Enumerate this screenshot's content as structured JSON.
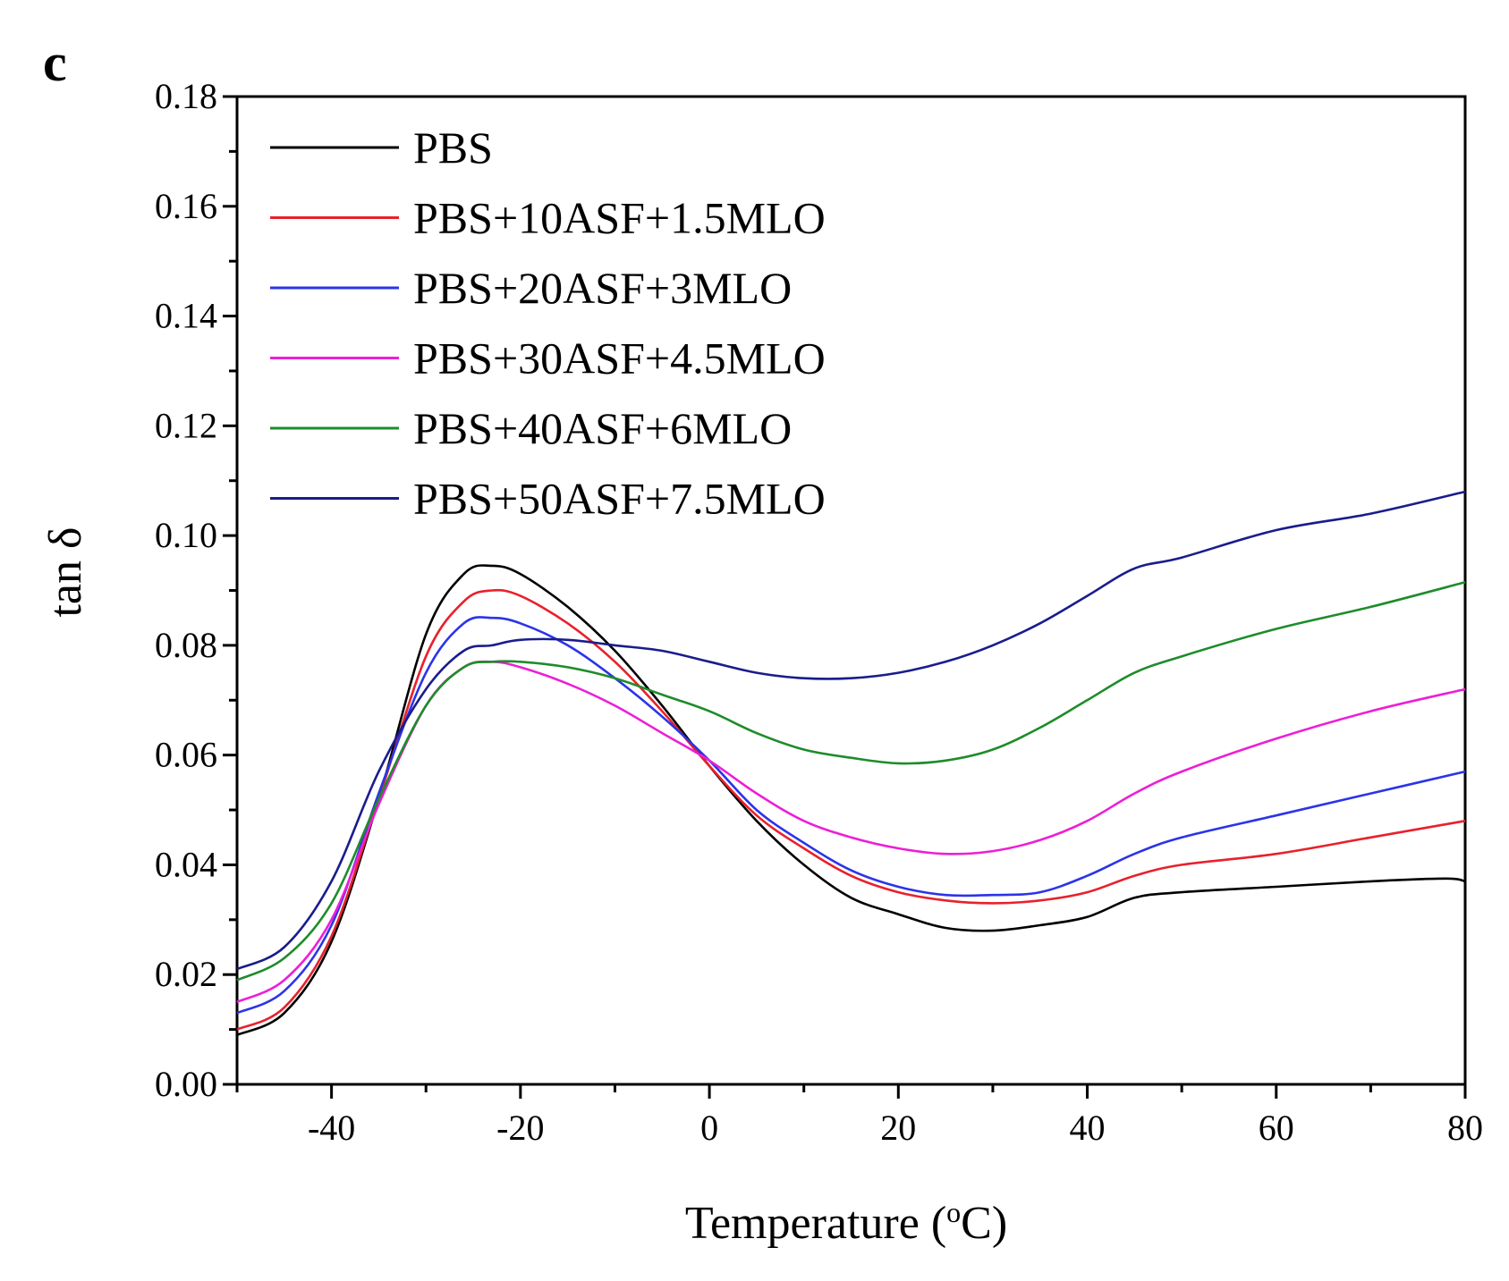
{
  "chart_data": {
    "type": "line",
    "panel_label": "c",
    "xlabel": "Temperature (",
    "xlabel_sup": "o",
    "xlabel_tail": "C)",
    "ylabel": "tan δ",
    "xlim": [
      -50,
      80
    ],
    "ylim": [
      0,
      0.18
    ],
    "x_ticks": [
      -40,
      -20,
      0,
      20,
      40,
      60,
      80
    ],
    "x_tick_labels": [
      "-40",
      "-20",
      "0",
      "20",
      "40",
      "60",
      "80"
    ],
    "y_ticks": [
      0,
      0.02,
      0.04,
      0.06,
      0.08,
      0.1,
      0.12,
      0.14,
      0.16,
      0.18
    ],
    "y_tick_labels": [
      "0.00",
      "0.02",
      "0.04",
      "0.06",
      "0.08",
      "0.10",
      "0.12",
      "0.14",
      "0.16",
      "0.18"
    ],
    "legend_position": "top-left",
    "series": [
      {
        "name": "PBS",
        "color": "#000000",
        "x": [
          -50,
          -45,
          -40,
          -35,
          -30,
          -26,
          -23,
          -20,
          -15,
          -10,
          -5,
          0,
          5,
          10,
          15,
          20,
          25,
          30,
          35,
          40,
          45,
          50,
          60,
          70,
          78,
          80
        ],
        "y": [
          0.009,
          0.013,
          0.026,
          0.052,
          0.082,
          0.093,
          0.0945,
          0.093,
          0.087,
          0.079,
          0.069,
          0.058,
          0.048,
          0.04,
          0.034,
          0.031,
          0.0285,
          0.028,
          0.029,
          0.0305,
          0.034,
          0.035,
          0.036,
          0.037,
          0.0375,
          0.037
        ]
      },
      {
        "name": "PBS+10ASF+1.5MLO",
        "color": "#e8212b",
        "x": [
          -50,
          -45,
          -40,
          -35,
          -30,
          -26,
          -23,
          -20,
          -15,
          -10,
          -5,
          0,
          5,
          10,
          15,
          20,
          25,
          30,
          35,
          40,
          45,
          50,
          60,
          70,
          80
        ],
        "y": [
          0.01,
          0.014,
          0.027,
          0.052,
          0.078,
          0.088,
          0.09,
          0.089,
          0.084,
          0.077,
          0.068,
          0.058,
          0.049,
          0.043,
          0.038,
          0.035,
          0.0335,
          0.033,
          0.0335,
          0.035,
          0.038,
          0.04,
          0.042,
          0.045,
          0.048
        ]
      },
      {
        "name": "PBS+20ASF+3MLO",
        "color": "#2b34e8",
        "x": [
          -50,
          -45,
          -40,
          -35,
          -30,
          -26,
          -23,
          -20,
          -15,
          -10,
          -5,
          0,
          5,
          10,
          15,
          20,
          25,
          30,
          35,
          40,
          45,
          50,
          60,
          70,
          80
        ],
        "y": [
          0.013,
          0.017,
          0.029,
          0.053,
          0.075,
          0.084,
          0.085,
          0.084,
          0.08,
          0.074,
          0.067,
          0.059,
          0.05,
          0.044,
          0.039,
          0.036,
          0.0345,
          0.0345,
          0.035,
          0.038,
          0.042,
          0.045,
          0.049,
          0.053,
          0.057
        ]
      },
      {
        "name": "PBS+30ASF+4.5MLO",
        "color": "#ec1fd6",
        "x": [
          -50,
          -45,
          -40,
          -35,
          -30,
          -26,
          -23,
          -20,
          -15,
          -10,
          -5,
          0,
          5,
          10,
          15,
          20,
          25,
          30,
          35,
          40,
          45,
          50,
          60,
          70,
          80
        ],
        "y": [
          0.015,
          0.019,
          0.03,
          0.051,
          0.069,
          0.076,
          0.077,
          0.076,
          0.073,
          0.069,
          0.064,
          0.059,
          0.053,
          0.048,
          0.045,
          0.043,
          0.042,
          0.0425,
          0.0445,
          0.048,
          0.053,
          0.057,
          0.063,
          0.068,
          0.072
        ]
      },
      {
        "name": "PBS+40ASF+6MLO",
        "color": "#1e8c2a",
        "x": [
          -50,
          -45,
          -40,
          -35,
          -30,
          -26,
          -23,
          -20,
          -15,
          -10,
          -5,
          0,
          5,
          10,
          15,
          20,
          25,
          30,
          35,
          40,
          45,
          50,
          60,
          70,
          80
        ],
        "y": [
          0.019,
          0.023,
          0.033,
          0.052,
          0.069,
          0.076,
          0.077,
          0.077,
          0.076,
          0.074,
          0.071,
          0.068,
          0.064,
          0.061,
          0.0595,
          0.0585,
          0.059,
          0.061,
          0.065,
          0.07,
          0.075,
          0.078,
          0.083,
          0.087,
          0.0915
        ]
      },
      {
        "name": "PBS+50ASF+7.5MLO",
        "color": "#1a1c8c",
        "x": [
          -50,
          -45,
          -40,
          -35,
          -30,
          -26,
          -23,
          -20,
          -15,
          -10,
          -5,
          0,
          5,
          10,
          15,
          20,
          25,
          30,
          35,
          40,
          45,
          50,
          60,
          70,
          80
        ],
        "y": [
          0.021,
          0.025,
          0.037,
          0.057,
          0.072,
          0.079,
          0.08,
          0.081,
          0.081,
          0.08,
          0.079,
          0.077,
          0.075,
          0.074,
          0.074,
          0.075,
          0.077,
          0.08,
          0.084,
          0.089,
          0.094,
          0.096,
          0.101,
          0.104,
          0.108
        ]
      }
    ]
  }
}
